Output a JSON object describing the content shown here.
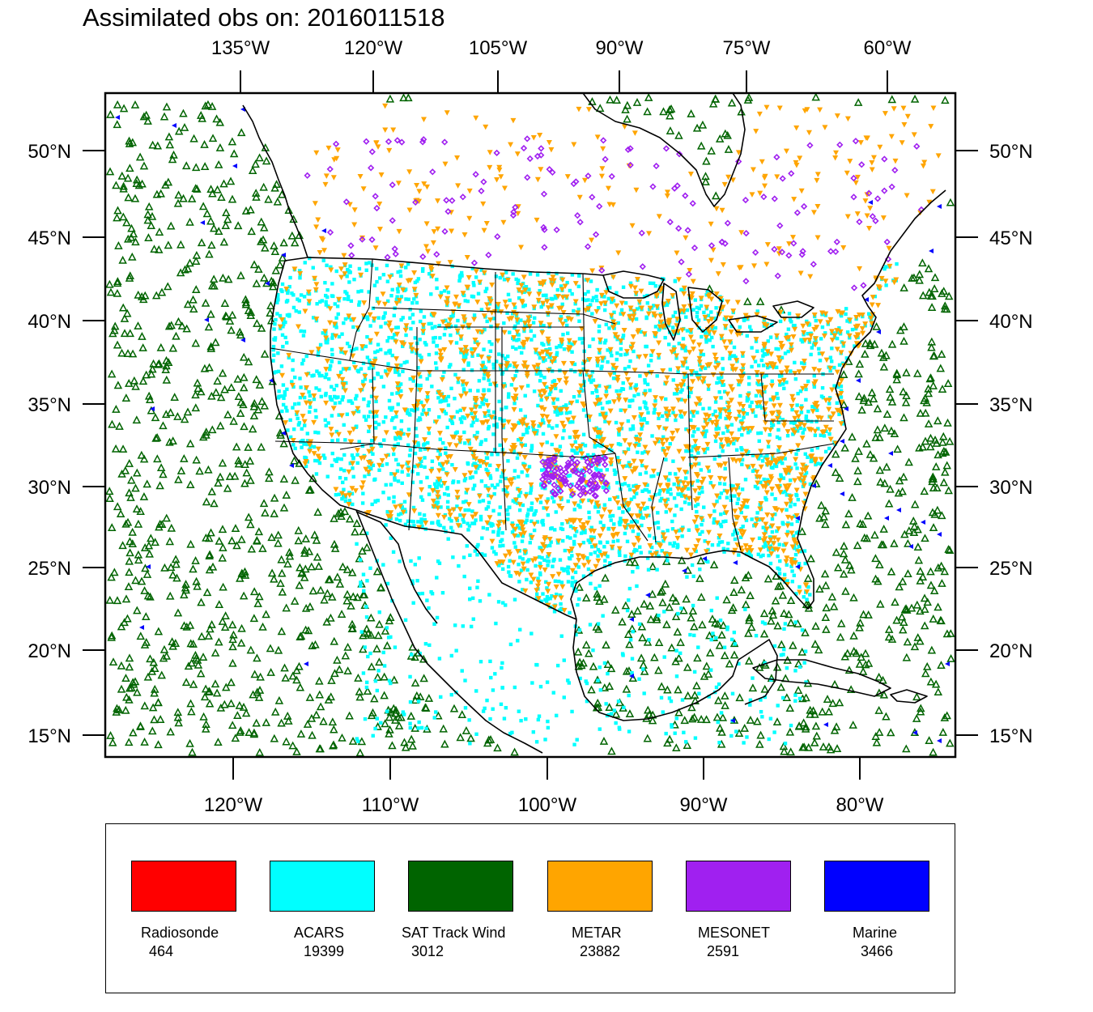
{
  "title": "Assimilated obs on: 2016011518",
  "top_lon_labels": [
    "135°W",
    "120°W",
    "105°W",
    "90°W",
    "75°W",
    "60°W"
  ],
  "bottom_lon_labels": [
    "120°W",
    "110°W",
    "100°W",
    "90°W",
    "80°W"
  ],
  "lat_labels": [
    "50°N",
    "45°N",
    "40°N",
    "35°N",
    "30°N",
    "25°N",
    "20°N",
    "15°N"
  ],
  "colors": {
    "Radiosonde": "#ff0000",
    "ACARS": "#00ffff",
    "SAT Track Wind": "#006400",
    "METAR": "#ffa500",
    "MESONET": "#a020f0",
    "Marine": "#0000ff"
  },
  "legend": [
    {
      "label": "Radiosonde",
      "count": "464",
      "color": "#ff0000"
    },
    {
      "label": "ACARS",
      "count": "19399",
      "color": "#00ffff"
    },
    {
      "label": "SAT Track Wind",
      "count": "3012",
      "color": "#006400"
    },
    {
      "label": "METAR",
      "count": "23882",
      "color": "#ffa500"
    },
    {
      "label": "MESONET",
      "count": "2591",
      "color": "#a020f0"
    },
    {
      "label": "Marine",
      "count": "3466",
      "color": "#0000ff"
    }
  ]
}
